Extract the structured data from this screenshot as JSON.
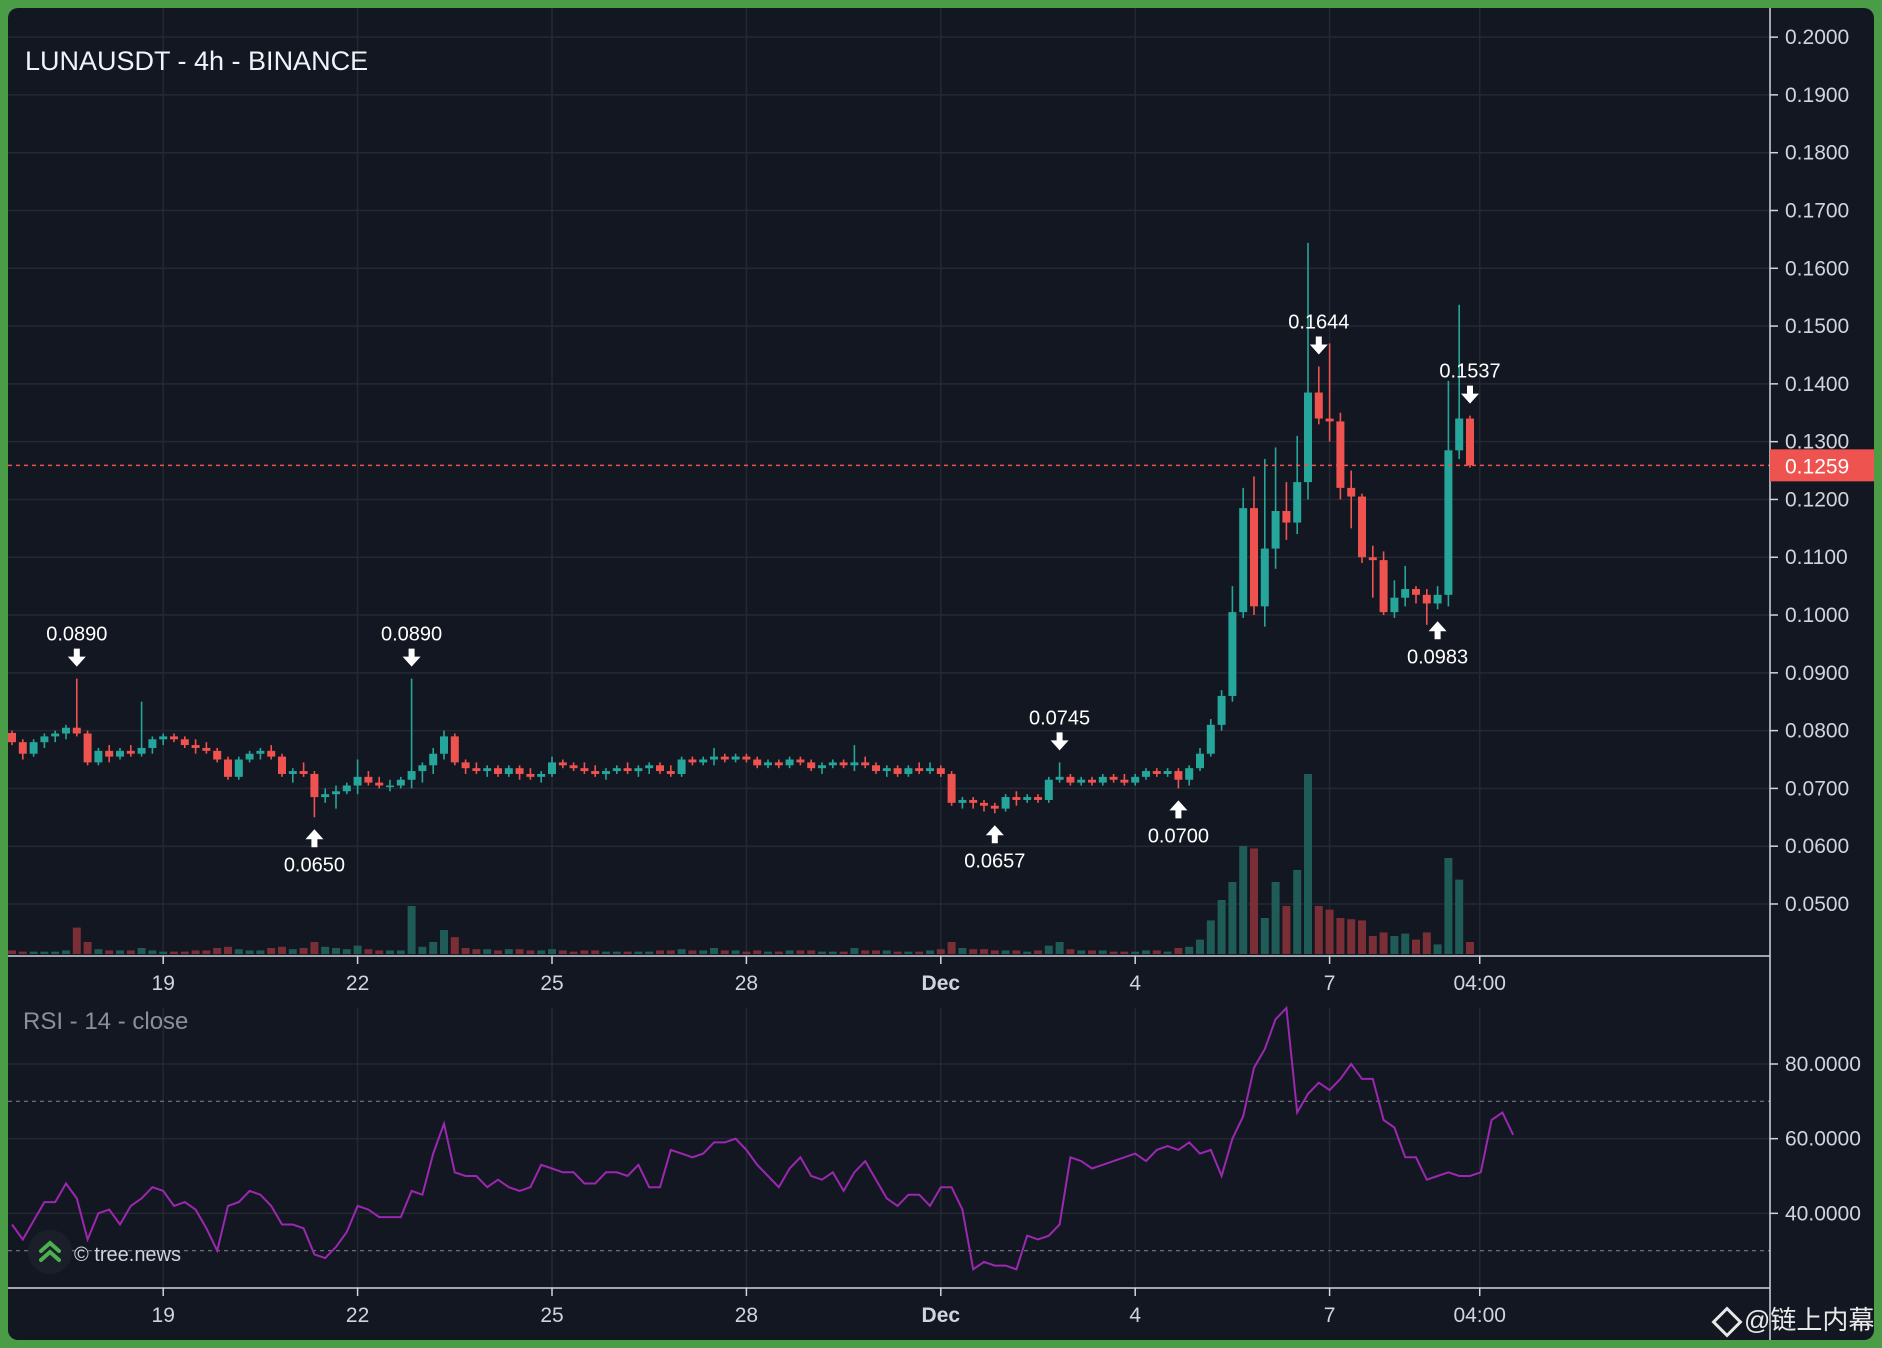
{
  "title": "LUNAUSDT - 4h - BINANCE",
  "rsi_title": "RSI - 14 - close",
  "credit": "© tree.news",
  "watermark": "@链上内幕",
  "colors": {
    "background": "#131722",
    "grid": "#242832",
    "up": "#26a69a",
    "down": "#ef5350",
    "rsi_line": "#9c27b0",
    "price_line": "#ef5350",
    "text": "#d1d4dc"
  },
  "chart_data": [
    {
      "type": "candlestick",
      "title": "LUNAUSDT - 4h - BINANCE",
      "x_ticks": [
        "19",
        "22",
        "25",
        "28",
        "Dec",
        "4",
        "7",
        "04:00"
      ],
      "y_ticks": [
        "0.0500",
        "0.0600",
        "0.0700",
        "0.0800",
        "0.0900",
        "0.1000",
        "0.1100",
        "0.1200",
        "0.1300",
        "0.1400",
        "0.1500",
        "0.1600",
        "0.1700",
        "0.1800",
        "0.1900",
        "0.2000"
      ],
      "ylim": [
        0.041,
        0.204
      ],
      "last_price": "0.1259",
      "last_price_value": 0.1259,
      "annotations": [
        {
          "label": "0.0890",
          "kind": "high",
          "bar": 6
        },
        {
          "label": "0.0890",
          "kind": "high",
          "bar": 37
        },
        {
          "label": "0.0650",
          "kind": "low",
          "bar": 28
        },
        {
          "label": "0.0657",
          "kind": "low",
          "bar": 91
        },
        {
          "label": "0.0745",
          "kind": "high",
          "bar": 97
        },
        {
          "label": "0.0700",
          "kind": "low",
          "bar": 108
        },
        {
          "label": "0.1644",
          "kind": "high",
          "bar": 121
        },
        {
          "label": "0.1537",
          "kind": "high",
          "bar": 135
        },
        {
          "label": "0.0983",
          "kind": "low",
          "bar": 132
        }
      ],
      "candles": [
        [
          0.0796,
          0.08,
          0.0775,
          0.078,
          3
        ],
        [
          0.078,
          0.0785,
          0.075,
          0.076,
          2
        ],
        [
          0.076,
          0.0785,
          0.0755,
          0.078,
          2
        ],
        [
          0.078,
          0.0795,
          0.077,
          0.079,
          2
        ],
        [
          0.079,
          0.08,
          0.078,
          0.0795,
          2
        ],
        [
          0.0795,
          0.081,
          0.0785,
          0.0805,
          3
        ],
        [
          0.0805,
          0.089,
          0.079,
          0.0795,
          22
        ],
        [
          0.0795,
          0.08,
          0.074,
          0.0745,
          10
        ],
        [
          0.0745,
          0.077,
          0.074,
          0.0765,
          4
        ],
        [
          0.0765,
          0.0775,
          0.0745,
          0.0755,
          3
        ],
        [
          0.0755,
          0.077,
          0.075,
          0.0765,
          3
        ],
        [
          0.0765,
          0.0775,
          0.0755,
          0.076,
          3
        ],
        [
          0.076,
          0.085,
          0.0755,
          0.077,
          5
        ],
        [
          0.077,
          0.079,
          0.076,
          0.0785,
          3
        ],
        [
          0.0785,
          0.0795,
          0.0775,
          0.079,
          2
        ],
        [
          0.079,
          0.0795,
          0.078,
          0.0785,
          2
        ],
        [
          0.0785,
          0.079,
          0.077,
          0.0775,
          2
        ],
        [
          0.0775,
          0.0785,
          0.076,
          0.077,
          3
        ],
        [
          0.077,
          0.078,
          0.076,
          0.0765,
          3
        ],
        [
          0.0765,
          0.077,
          0.0745,
          0.075,
          5
        ],
        [
          0.075,
          0.0755,
          0.0715,
          0.072,
          6
        ],
        [
          0.072,
          0.0755,
          0.0715,
          0.075,
          4
        ],
        [
          0.075,
          0.0765,
          0.0745,
          0.076,
          3
        ],
        [
          0.076,
          0.077,
          0.075,
          0.0765,
          3
        ],
        [
          0.0765,
          0.0775,
          0.075,
          0.0755,
          5
        ],
        [
          0.0755,
          0.076,
          0.072,
          0.0725,
          6
        ],
        [
          0.0725,
          0.0735,
          0.071,
          0.073,
          4
        ],
        [
          0.073,
          0.0745,
          0.072,
          0.0725,
          5
        ],
        [
          0.0725,
          0.073,
          0.065,
          0.0685,
          10
        ],
        [
          0.0685,
          0.07,
          0.0675,
          0.069,
          6
        ],
        [
          0.069,
          0.0705,
          0.0665,
          0.0695,
          5
        ],
        [
          0.0695,
          0.071,
          0.069,
          0.0705,
          4
        ],
        [
          0.0705,
          0.075,
          0.069,
          0.072,
          7
        ],
        [
          0.072,
          0.073,
          0.0705,
          0.071,
          4
        ],
        [
          0.071,
          0.072,
          0.07,
          0.0705,
          3
        ],
        [
          0.0705,
          0.0715,
          0.0695,
          0.0705,
          3
        ],
        [
          0.0705,
          0.072,
          0.07,
          0.0715,
          3
        ],
        [
          0.0715,
          0.089,
          0.07,
          0.073,
          40
        ],
        [
          0.073,
          0.0745,
          0.071,
          0.074,
          6
        ],
        [
          0.074,
          0.077,
          0.0725,
          0.076,
          10
        ],
        [
          0.076,
          0.08,
          0.075,
          0.079,
          20
        ],
        [
          0.079,
          0.0795,
          0.074,
          0.0745,
          14
        ],
        [
          0.0745,
          0.075,
          0.0725,
          0.0735,
          5
        ],
        [
          0.0735,
          0.0745,
          0.0725,
          0.073,
          4
        ],
        [
          0.073,
          0.074,
          0.072,
          0.0735,
          4
        ],
        [
          0.0735,
          0.074,
          0.072,
          0.0725,
          3
        ],
        [
          0.0725,
          0.074,
          0.072,
          0.0735,
          4
        ],
        [
          0.0735,
          0.074,
          0.0715,
          0.0725,
          4
        ],
        [
          0.0725,
          0.0735,
          0.0715,
          0.072,
          3
        ],
        [
          0.072,
          0.073,
          0.071,
          0.0725,
          3
        ],
        [
          0.0725,
          0.0755,
          0.072,
          0.0745,
          4
        ],
        [
          0.0745,
          0.075,
          0.0735,
          0.074,
          3
        ],
        [
          0.074,
          0.0745,
          0.073,
          0.0735,
          2
        ],
        [
          0.0735,
          0.0745,
          0.0725,
          0.073,
          3
        ],
        [
          0.073,
          0.074,
          0.072,
          0.0725,
          3
        ],
        [
          0.0725,
          0.0735,
          0.0715,
          0.073,
          2
        ],
        [
          0.073,
          0.074,
          0.0725,
          0.0735,
          2
        ],
        [
          0.0735,
          0.0745,
          0.0725,
          0.073,
          2
        ],
        [
          0.073,
          0.074,
          0.072,
          0.0735,
          2
        ],
        [
          0.0735,
          0.0745,
          0.0725,
          0.074,
          2
        ],
        [
          0.074,
          0.0745,
          0.0725,
          0.073,
          3
        ],
        [
          0.073,
          0.074,
          0.072,
          0.0725,
          3
        ],
        [
          0.0725,
          0.0755,
          0.072,
          0.075,
          4
        ],
        [
          0.075,
          0.0755,
          0.074,
          0.0745,
          3
        ],
        [
          0.0745,
          0.0755,
          0.074,
          0.075,
          3
        ],
        [
          0.075,
          0.077,
          0.074,
          0.0755,
          5
        ],
        [
          0.0755,
          0.076,
          0.0745,
          0.075,
          3
        ],
        [
          0.075,
          0.076,
          0.0745,
          0.0755,
          3
        ],
        [
          0.0755,
          0.076,
          0.0745,
          0.075,
          2
        ],
        [
          0.075,
          0.0755,
          0.0735,
          0.074,
          3
        ],
        [
          0.074,
          0.075,
          0.0735,
          0.0745,
          2
        ],
        [
          0.0745,
          0.075,
          0.0735,
          0.074,
          2
        ],
        [
          0.074,
          0.0755,
          0.0735,
          0.075,
          3
        ],
        [
          0.075,
          0.0755,
          0.074,
          0.0745,
          3
        ],
        [
          0.0745,
          0.075,
          0.073,
          0.0735,
          3
        ],
        [
          0.0735,
          0.0745,
          0.0725,
          0.074,
          2
        ],
        [
          0.074,
          0.075,
          0.0735,
          0.0745,
          2
        ],
        [
          0.0745,
          0.075,
          0.0735,
          0.074,
          2
        ],
        [
          0.074,
          0.0775,
          0.073,
          0.0745,
          5
        ],
        [
          0.0745,
          0.0755,
          0.0735,
          0.074,
          3
        ],
        [
          0.074,
          0.0745,
          0.0725,
          0.073,
          3
        ],
        [
          0.073,
          0.074,
          0.072,
          0.0735,
          3
        ],
        [
          0.0735,
          0.074,
          0.072,
          0.0725,
          2
        ],
        [
          0.0725,
          0.074,
          0.072,
          0.0735,
          2
        ],
        [
          0.0735,
          0.0745,
          0.0725,
          0.073,
          2
        ],
        [
          0.073,
          0.0745,
          0.0725,
          0.0735,
          3
        ],
        [
          0.0735,
          0.074,
          0.072,
          0.0725,
          4
        ],
        [
          0.0725,
          0.073,
          0.067,
          0.0675,
          10
        ],
        [
          0.0675,
          0.0685,
          0.0665,
          0.068,
          5
        ],
        [
          0.068,
          0.0685,
          0.0665,
          0.0675,
          4
        ],
        [
          0.0675,
          0.068,
          0.066,
          0.067,
          4
        ],
        [
          0.067,
          0.0675,
          0.0657,
          0.0665,
          3
        ],
        [
          0.0665,
          0.069,
          0.066,
          0.0685,
          3
        ],
        [
          0.0685,
          0.0695,
          0.067,
          0.068,
          3
        ],
        [
          0.068,
          0.069,
          0.0675,
          0.0685,
          2
        ],
        [
          0.0685,
          0.069,
          0.0675,
          0.068,
          3
        ],
        [
          0.068,
          0.072,
          0.0675,
          0.0715,
          7
        ],
        [
          0.0715,
          0.0745,
          0.071,
          0.072,
          10
        ],
        [
          0.072,
          0.0725,
          0.0705,
          0.071,
          4
        ],
        [
          0.071,
          0.072,
          0.0705,
          0.0715,
          3
        ],
        [
          0.0715,
          0.072,
          0.0705,
          0.071,
          3
        ],
        [
          0.071,
          0.0725,
          0.0705,
          0.072,
          3
        ],
        [
          0.072,
          0.0725,
          0.071,
          0.0715,
          2
        ],
        [
          0.0715,
          0.0725,
          0.0705,
          0.071,
          2
        ],
        [
          0.071,
          0.0725,
          0.0705,
          0.072,
          2
        ],
        [
          0.072,
          0.0735,
          0.0715,
          0.073,
          3
        ],
        [
          0.073,
          0.0735,
          0.072,
          0.0725,
          3
        ],
        [
          0.0725,
          0.0735,
          0.072,
          0.073,
          2
        ],
        [
          0.073,
          0.0735,
          0.07,
          0.0715,
          5
        ],
        [
          0.0715,
          0.074,
          0.0705,
          0.0735,
          6
        ],
        [
          0.0735,
          0.077,
          0.073,
          0.076,
          12
        ],
        [
          0.076,
          0.082,
          0.0755,
          0.081,
          28
        ],
        [
          0.081,
          0.087,
          0.08,
          0.086,
          45
        ],
        [
          0.086,
          0.105,
          0.085,
          0.1005,
          60
        ],
        [
          0.1005,
          0.122,
          0.0995,
          0.1185,
          90
        ],
        [
          0.1185,
          0.124,
          0.1,
          0.1015,
          88
        ],
        [
          0.1015,
          0.127,
          0.098,
          0.1115,
          30
        ],
        [
          0.1115,
          0.129,
          0.108,
          0.118,
          60
        ],
        [
          0.118,
          0.123,
          0.113,
          0.116,
          40
        ],
        [
          0.116,
          0.131,
          0.114,
          0.123,
          70
        ],
        [
          0.123,
          0.1644,
          0.12,
          0.1385,
          150
        ],
        [
          0.1385,
          0.143,
          0.133,
          0.134,
          40
        ],
        [
          0.134,
          0.147,
          0.13,
          0.1335,
          37
        ],
        [
          0.1335,
          0.135,
          0.12,
          0.122,
          30
        ],
        [
          0.122,
          0.125,
          0.115,
          0.1205,
          29
        ],
        [
          0.1205,
          0.121,
          0.109,
          0.11,
          28
        ],
        [
          0.11,
          0.112,
          0.103,
          0.1095,
          15
        ],
        [
          0.1095,
          0.111,
          0.1,
          0.1005,
          18
        ],
        [
          0.1005,
          0.106,
          0.0995,
          0.103,
          15
        ],
        [
          0.103,
          0.1085,
          0.1015,
          0.1045,
          17
        ],
        [
          0.1045,
          0.105,
          0.102,
          0.1035,
          12
        ],
        [
          0.1035,
          0.1045,
          0.0983,
          0.102,
          18
        ],
        [
          0.102,
          0.105,
          0.101,
          0.1035,
          8
        ],
        [
          0.1035,
          0.1405,
          0.1015,
          0.1285,
          80
        ],
        [
          0.1285,
          0.1537,
          0.127,
          0.134,
          62
        ],
        [
          0.134,
          0.1345,
          0.1255,
          0.1259,
          10
        ]
      ]
    },
    {
      "type": "line",
      "title": "RSI - 14 - close",
      "y_ticks": [
        "40.0000",
        "60.0000",
        "80.0000"
      ],
      "ylim": [
        20,
        95
      ],
      "bands": [
        30,
        70
      ],
      "values": [
        37,
        33,
        38,
        43,
        43,
        48,
        44,
        33,
        40,
        41,
        37,
        42,
        44,
        47,
        46,
        42,
        43,
        41,
        36,
        30,
        42,
        43,
        46,
        45,
        42,
        37,
        37,
        36,
        29,
        28,
        31,
        35,
        42,
        41,
        39,
        39,
        39,
        46,
        45,
        56,
        64,
        51,
        50,
        50,
        47,
        49,
        47,
        46,
        47,
        53,
        52,
        51,
        51,
        48,
        48,
        51,
        51,
        50,
        53,
        47,
        47,
        57,
        56,
        55,
        56,
        59,
        59,
        60,
        57,
        53,
        50,
        47,
        52,
        55,
        50,
        49,
        51,
        46,
        51,
        54,
        49,
        44,
        42,
        45,
        45,
        42,
        47,
        47,
        41,
        25,
        27,
        26,
        26,
        25,
        34,
        33,
        34,
        37,
        55,
        54,
        52,
        53,
        54,
        55,
        56,
        54,
        57,
        58,
        57,
        59,
        56,
        57,
        50,
        60,
        66,
        79,
        84,
        92,
        95,
        67,
        72,
        75,
        73,
        76,
        80,
        76,
        76,
        65,
        63,
        55,
        55,
        49,
        50,
        51,
        50,
        50,
        51,
        65,
        67,
        61
      ]
    }
  ]
}
